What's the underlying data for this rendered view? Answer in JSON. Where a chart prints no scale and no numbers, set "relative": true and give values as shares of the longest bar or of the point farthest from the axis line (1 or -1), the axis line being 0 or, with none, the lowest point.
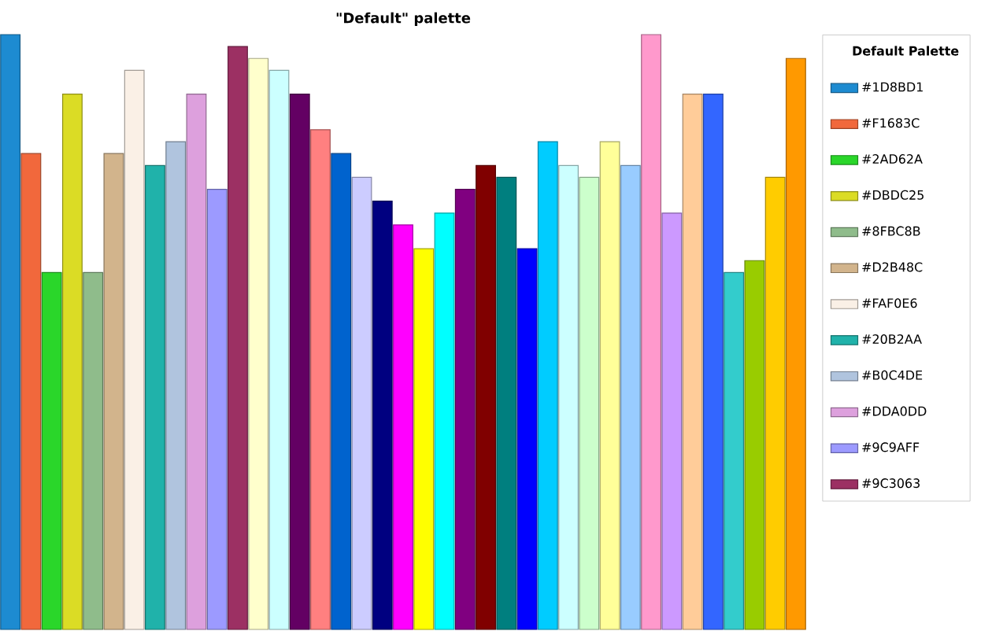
{
  "chart_data": {
    "type": "bar",
    "title": "\"Default\" palette",
    "legend_title": "Default Palette",
    "relative": true,
    "legend": "right",
    "stacked": true,
    "categories": [
      null,
      null,
      null,
      null,
      null,
      null,
      null,
      null,
      null,
      null,
      null,
      null,
      null,
      null,
      null,
      null,
      null,
      null,
      null,
      null,
      null,
      null,
      null,
      null,
      null,
      null,
      null,
      null,
      null,
      null,
      null,
      null,
      null,
      null,
      null,
      null,
      null,
      null,
      null
    ],
    "series": [
      {
        "name": "#1D8BD1",
        "color": "#1d8bd1",
        "values": [
          1.0,
          null,
          null,
          null,
          null,
          null,
          null,
          null,
          null,
          null,
          null,
          null,
          null,
          null,
          null,
          null,
          null,
          null,
          null,
          null,
          null,
          null,
          null,
          null,
          null,
          null,
          null,
          null,
          null,
          null,
          null,
          null,
          null,
          null,
          null,
          null,
          null,
          null,
          null
        ]
      },
      {
        "name": "#F1683C",
        "color": "#f1683c",
        "values": [
          null,
          0.8,
          null,
          null,
          null,
          null,
          null,
          null,
          null,
          null,
          null,
          null,
          null,
          null,
          null,
          null,
          null,
          null,
          null,
          null,
          null,
          null,
          null,
          null,
          null,
          null,
          null,
          null,
          null,
          null,
          null,
          null,
          null,
          null,
          null,
          null,
          null,
          null,
          null
        ]
      },
      {
        "name": "#2AD62A",
        "color": "#2ad62a",
        "values": [
          null,
          null,
          0.6,
          null,
          null,
          null,
          null,
          null,
          null,
          null,
          null,
          null,
          null,
          null,
          null,
          null,
          null,
          null,
          null,
          null,
          null,
          null,
          null,
          null,
          null,
          null,
          null,
          null,
          null,
          null,
          null,
          null,
          null,
          null,
          null,
          null,
          null,
          null,
          null
        ]
      },
      {
        "name": "#DBDC25",
        "color": "#dbdc25",
        "values": [
          null,
          null,
          null,
          0.9,
          null,
          null,
          null,
          null,
          null,
          null,
          null,
          null,
          null,
          null,
          null,
          null,
          null,
          null,
          null,
          null,
          null,
          null,
          null,
          null,
          null,
          null,
          null,
          null,
          null,
          null,
          null,
          null,
          null,
          null,
          null,
          null,
          null,
          null,
          null
        ]
      },
      {
        "name": "#8FBC8B",
        "color": "#8fbc8b",
        "values": [
          null,
          null,
          null,
          null,
          0.6,
          null,
          null,
          null,
          null,
          null,
          null,
          null,
          null,
          null,
          null,
          null,
          null,
          null,
          null,
          null,
          null,
          null,
          null,
          null,
          null,
          null,
          null,
          null,
          null,
          null,
          null,
          null,
          null,
          null,
          null,
          null,
          null,
          null,
          null
        ]
      },
      {
        "name": "#D2B48C",
        "color": "#d2b48c",
        "values": [
          null,
          null,
          null,
          null,
          null,
          0.8,
          null,
          null,
          null,
          null,
          null,
          null,
          null,
          null,
          null,
          null,
          null,
          null,
          null,
          null,
          null,
          null,
          null,
          null,
          null,
          null,
          null,
          null,
          null,
          null,
          null,
          null,
          null,
          null,
          null,
          null,
          null,
          null,
          null
        ]
      },
      {
        "name": "#FAF0E6",
        "color": "#faf0e6",
        "values": [
          null,
          null,
          null,
          null,
          null,
          null,
          0.94,
          null,
          null,
          null,
          null,
          null,
          null,
          null,
          null,
          null,
          null,
          null,
          null,
          null,
          null,
          null,
          null,
          null,
          null,
          null,
          null,
          null,
          null,
          null,
          null,
          null,
          null,
          null,
          null,
          null,
          null,
          null,
          null
        ]
      },
      {
        "name": "#20B2AA",
        "color": "#20b2aa",
        "values": [
          null,
          null,
          null,
          null,
          null,
          null,
          null,
          0.78,
          null,
          null,
          null,
          null,
          null,
          null,
          null,
          null,
          null,
          null,
          null,
          null,
          null,
          null,
          null,
          null,
          null,
          null,
          null,
          null,
          null,
          null,
          null,
          null,
          null,
          null,
          null,
          null,
          null,
          null,
          null
        ]
      },
      {
        "name": "#B0C4DE",
        "color": "#b0c4de",
        "values": [
          null,
          null,
          null,
          null,
          null,
          null,
          null,
          null,
          0.82,
          null,
          null,
          null,
          null,
          null,
          null,
          null,
          null,
          null,
          null,
          null,
          null,
          null,
          null,
          null,
          null,
          null,
          null,
          null,
          null,
          null,
          null,
          null,
          null,
          null,
          null,
          null,
          null,
          null,
          null
        ]
      },
      {
        "name": "#DDA0DD",
        "color": "#dda0dd",
        "values": [
          null,
          null,
          null,
          null,
          null,
          null,
          null,
          null,
          null,
          0.9,
          null,
          null,
          null,
          null,
          null,
          null,
          null,
          null,
          null,
          null,
          null,
          null,
          null,
          null,
          null,
          null,
          null,
          null,
          null,
          null,
          null,
          null,
          null,
          null,
          null,
          null,
          null,
          null,
          null
        ]
      },
      {
        "name": "#9C9AFF",
        "color": "#9c9aff",
        "values": [
          null,
          null,
          null,
          null,
          null,
          null,
          null,
          null,
          null,
          null,
          0.74,
          null,
          null,
          null,
          null,
          null,
          null,
          null,
          null,
          null,
          null,
          null,
          null,
          null,
          null,
          null,
          null,
          null,
          null,
          null,
          null,
          null,
          null,
          null,
          null,
          null,
          null,
          null,
          null
        ]
      },
      {
        "name": "#9C3063",
        "color": "#9c3063",
        "values": [
          null,
          null,
          null,
          null,
          null,
          null,
          null,
          null,
          null,
          null,
          null,
          0.98,
          null,
          null,
          null,
          null,
          null,
          null,
          null,
          null,
          null,
          null,
          null,
          null,
          null,
          null,
          null,
          null,
          null,
          null,
          null,
          null,
          null,
          null,
          null,
          null,
          null,
          null,
          null
        ]
      },
      {
        "color": "#ffffcc",
        "values": [
          null,
          null,
          null,
          null,
          null,
          null,
          null,
          null,
          null,
          null,
          null,
          null,
          0.96,
          null,
          null,
          null,
          null,
          null,
          null,
          null,
          null,
          null,
          null,
          null,
          null,
          null,
          null,
          null,
          null,
          null,
          null,
          null,
          null,
          null,
          null,
          null,
          null,
          null,
          null
        ]
      },
      {
        "color": "#ccffff",
        "values": [
          null,
          null,
          null,
          null,
          null,
          null,
          null,
          null,
          null,
          null,
          null,
          null,
          null,
          0.94,
          null,
          null,
          null,
          null,
          null,
          null,
          null,
          null,
          null,
          null,
          null,
          null,
          null,
          null,
          null,
          null,
          null,
          null,
          null,
          null,
          null,
          null,
          null,
          null,
          null
        ]
      },
      {
        "color": "#630063",
        "values": [
          null,
          null,
          null,
          null,
          null,
          null,
          null,
          null,
          null,
          null,
          null,
          null,
          null,
          null,
          0.9,
          null,
          null,
          null,
          null,
          null,
          null,
          null,
          null,
          null,
          null,
          null,
          null,
          null,
          null,
          null,
          null,
          null,
          null,
          null,
          null,
          null,
          null,
          null,
          null
        ]
      },
      {
        "color": "#ff8080",
        "values": [
          null,
          null,
          null,
          null,
          null,
          null,
          null,
          null,
          null,
          null,
          null,
          null,
          null,
          null,
          null,
          0.84,
          null,
          null,
          null,
          null,
          null,
          null,
          null,
          null,
          null,
          null,
          null,
          null,
          null,
          null,
          null,
          null,
          null,
          null,
          null,
          null,
          null,
          null,
          null
        ]
      },
      {
        "color": "#0063ce",
        "values": [
          null,
          null,
          null,
          null,
          null,
          null,
          null,
          null,
          null,
          null,
          null,
          null,
          null,
          null,
          null,
          null,
          0.8,
          null,
          null,
          null,
          null,
          null,
          null,
          null,
          null,
          null,
          null,
          null,
          null,
          null,
          null,
          null,
          null,
          null,
          null,
          null,
          null,
          null,
          null
        ]
      },
      {
        "color": "#ccccff",
        "values": [
          null,
          null,
          null,
          null,
          null,
          null,
          null,
          null,
          null,
          null,
          null,
          null,
          null,
          null,
          null,
          null,
          null,
          0.76,
          null,
          null,
          null,
          null,
          null,
          null,
          null,
          null,
          null,
          null,
          null,
          null,
          null,
          null,
          null,
          null,
          null,
          null,
          null,
          null,
          null
        ]
      },
      {
        "color": "#000080",
        "values": [
          null,
          null,
          null,
          null,
          null,
          null,
          null,
          null,
          null,
          null,
          null,
          null,
          null,
          null,
          null,
          null,
          null,
          null,
          0.72,
          null,
          null,
          null,
          null,
          null,
          null,
          null,
          null,
          null,
          null,
          null,
          null,
          null,
          null,
          null,
          null,
          null,
          null,
          null,
          null
        ]
      },
      {
        "color": "#ff00ff",
        "values": [
          null,
          null,
          null,
          null,
          null,
          null,
          null,
          null,
          null,
          null,
          null,
          null,
          null,
          null,
          null,
          null,
          null,
          null,
          null,
          0.68,
          null,
          null,
          null,
          null,
          null,
          null,
          null,
          null,
          null,
          null,
          null,
          null,
          null,
          null,
          null,
          null,
          null,
          null,
          null
        ]
      },
      {
        "color": "#ffff00",
        "values": [
          null,
          null,
          null,
          null,
          null,
          null,
          null,
          null,
          null,
          null,
          null,
          null,
          null,
          null,
          null,
          null,
          null,
          null,
          null,
          null,
          0.64,
          null,
          null,
          null,
          null,
          null,
          null,
          null,
          null,
          null,
          null,
          null,
          null,
          null,
          null,
          null,
          null,
          null,
          null
        ]
      },
      {
        "color": "#00ffff",
        "values": [
          null,
          null,
          null,
          null,
          null,
          null,
          null,
          null,
          null,
          null,
          null,
          null,
          null,
          null,
          null,
          null,
          null,
          null,
          null,
          null,
          null,
          0.7,
          null,
          null,
          null,
          null,
          null,
          null,
          null,
          null,
          null,
          null,
          null,
          null,
          null,
          null,
          null,
          null,
          null
        ]
      },
      {
        "color": "#800080",
        "values": [
          null,
          null,
          null,
          null,
          null,
          null,
          null,
          null,
          null,
          null,
          null,
          null,
          null,
          null,
          null,
          null,
          null,
          null,
          null,
          null,
          null,
          null,
          0.74,
          null,
          null,
          null,
          null,
          null,
          null,
          null,
          null,
          null,
          null,
          null,
          null,
          null,
          null,
          null,
          null
        ]
      },
      {
        "color": "#800000",
        "values": [
          null,
          null,
          null,
          null,
          null,
          null,
          null,
          null,
          null,
          null,
          null,
          null,
          null,
          null,
          null,
          null,
          null,
          null,
          null,
          null,
          null,
          null,
          null,
          0.78,
          null,
          null,
          null,
          null,
          null,
          null,
          null,
          null,
          null,
          null,
          null,
          null,
          null,
          null,
          null
        ]
      },
      {
        "color": "#007f7f",
        "values": [
          null,
          null,
          null,
          null,
          null,
          null,
          null,
          null,
          null,
          null,
          null,
          null,
          null,
          null,
          null,
          null,
          null,
          null,
          null,
          null,
          null,
          null,
          null,
          null,
          0.76,
          null,
          null,
          null,
          null,
          null,
          null,
          null,
          null,
          null,
          null,
          null,
          null,
          null,
          null
        ]
      },
      {
        "color": "#0000ff",
        "values": [
          null,
          null,
          null,
          null,
          null,
          null,
          null,
          null,
          null,
          null,
          null,
          null,
          null,
          null,
          null,
          null,
          null,
          null,
          null,
          null,
          null,
          null,
          null,
          null,
          null,
          0.64,
          null,
          null,
          null,
          null,
          null,
          null,
          null,
          null,
          null,
          null,
          null,
          null,
          null
        ]
      },
      {
        "color": "#00ccff",
        "values": [
          null,
          null,
          null,
          null,
          null,
          null,
          null,
          null,
          null,
          null,
          null,
          null,
          null,
          null,
          null,
          null,
          null,
          null,
          null,
          null,
          null,
          null,
          null,
          null,
          null,
          null,
          0.82,
          null,
          null,
          null,
          null,
          null,
          null,
          null,
          null,
          null,
          null,
          null,
          null
        ]
      },
      {
        "color": "#ccffff",
        "values": [
          null,
          null,
          null,
          null,
          null,
          null,
          null,
          null,
          null,
          null,
          null,
          null,
          null,
          null,
          null,
          null,
          null,
          null,
          null,
          null,
          null,
          null,
          null,
          null,
          null,
          null,
          null,
          0.78,
          null,
          null,
          null,
          null,
          null,
          null,
          null,
          null,
          null,
          null,
          null
        ]
      },
      {
        "color": "#ccffcc",
        "values": [
          null,
          null,
          null,
          null,
          null,
          null,
          null,
          null,
          null,
          null,
          null,
          null,
          null,
          null,
          null,
          null,
          null,
          null,
          null,
          null,
          null,
          null,
          null,
          null,
          null,
          null,
          null,
          null,
          0.76,
          null,
          null,
          null,
          null,
          null,
          null,
          null,
          null,
          null,
          null
        ]
      },
      {
        "color": "#ffff99",
        "values": [
          null,
          null,
          null,
          null,
          null,
          null,
          null,
          null,
          null,
          null,
          null,
          null,
          null,
          null,
          null,
          null,
          null,
          null,
          null,
          null,
          null,
          null,
          null,
          null,
          null,
          null,
          null,
          null,
          null,
          0.82,
          null,
          null,
          null,
          null,
          null,
          null,
          null,
          null,
          null
        ]
      },
      {
        "color": "#99ccff",
        "values": [
          null,
          null,
          null,
          null,
          null,
          null,
          null,
          null,
          null,
          null,
          null,
          null,
          null,
          null,
          null,
          null,
          null,
          null,
          null,
          null,
          null,
          null,
          null,
          null,
          null,
          null,
          null,
          null,
          null,
          null,
          0.78,
          null,
          null,
          null,
          null,
          null,
          null,
          null,
          null
        ]
      },
      {
        "color": "#ff99cc",
        "values": [
          null,
          null,
          null,
          null,
          null,
          null,
          null,
          null,
          null,
          null,
          null,
          null,
          null,
          null,
          null,
          null,
          null,
          null,
          null,
          null,
          null,
          null,
          null,
          null,
          null,
          null,
          null,
          null,
          null,
          null,
          null,
          1.0,
          null,
          null,
          null,
          null,
          null,
          null,
          null
        ]
      },
      {
        "color": "#cc99ff",
        "values": [
          null,
          null,
          null,
          null,
          null,
          null,
          null,
          null,
          null,
          null,
          null,
          null,
          null,
          null,
          null,
          null,
          null,
          null,
          null,
          null,
          null,
          null,
          null,
          null,
          null,
          null,
          null,
          null,
          null,
          null,
          null,
          null,
          0.7,
          null,
          null,
          null,
          null,
          null,
          null
        ]
      },
      {
        "color": "#ffcc99",
        "values": [
          null,
          null,
          null,
          null,
          null,
          null,
          null,
          null,
          null,
          null,
          null,
          null,
          null,
          null,
          null,
          null,
          null,
          null,
          null,
          null,
          null,
          null,
          null,
          null,
          null,
          null,
          null,
          null,
          null,
          null,
          null,
          null,
          null,
          0.9,
          null,
          null,
          null,
          null,
          null
        ]
      },
      {
        "color": "#3366ff",
        "values": [
          null,
          null,
          null,
          null,
          null,
          null,
          null,
          null,
          null,
          null,
          null,
          null,
          null,
          null,
          null,
          null,
          null,
          null,
          null,
          null,
          null,
          null,
          null,
          null,
          null,
          null,
          null,
          null,
          null,
          null,
          null,
          null,
          null,
          null,
          0.9,
          null,
          null,
          null,
          null
        ]
      },
      {
        "color": "#33cccc",
        "values": [
          null,
          null,
          null,
          null,
          null,
          null,
          null,
          null,
          null,
          null,
          null,
          null,
          null,
          null,
          null,
          null,
          null,
          null,
          null,
          null,
          null,
          null,
          null,
          null,
          null,
          null,
          null,
          null,
          null,
          null,
          null,
          null,
          null,
          null,
          null,
          0.6,
          null,
          null,
          null
        ]
      },
      {
        "color": "#99cc00",
        "values": [
          null,
          null,
          null,
          null,
          null,
          null,
          null,
          null,
          null,
          null,
          null,
          null,
          null,
          null,
          null,
          null,
          null,
          null,
          null,
          null,
          null,
          null,
          null,
          null,
          null,
          null,
          null,
          null,
          null,
          null,
          null,
          null,
          null,
          null,
          null,
          null,
          0.62,
          null,
          null
        ]
      },
      {
        "color": "#ffcc00",
        "values": [
          null,
          null,
          null,
          null,
          null,
          null,
          null,
          null,
          null,
          null,
          null,
          null,
          null,
          null,
          null,
          null,
          null,
          null,
          null,
          null,
          null,
          null,
          null,
          null,
          null,
          null,
          null,
          null,
          null,
          null,
          null,
          null,
          null,
          null,
          null,
          null,
          null,
          0.76,
          null
        ]
      },
      {
        "color": "#ff9900",
        "values": [
          null,
          null,
          null,
          null,
          null,
          null,
          null,
          null,
          null,
          null,
          null,
          null,
          null,
          null,
          null,
          null,
          null,
          null,
          null,
          null,
          null,
          null,
          null,
          null,
          null,
          null,
          null,
          null,
          null,
          null,
          null,
          null,
          null,
          null,
          null,
          null,
          null,
          null,
          0.96
        ]
      }
    ]
  }
}
